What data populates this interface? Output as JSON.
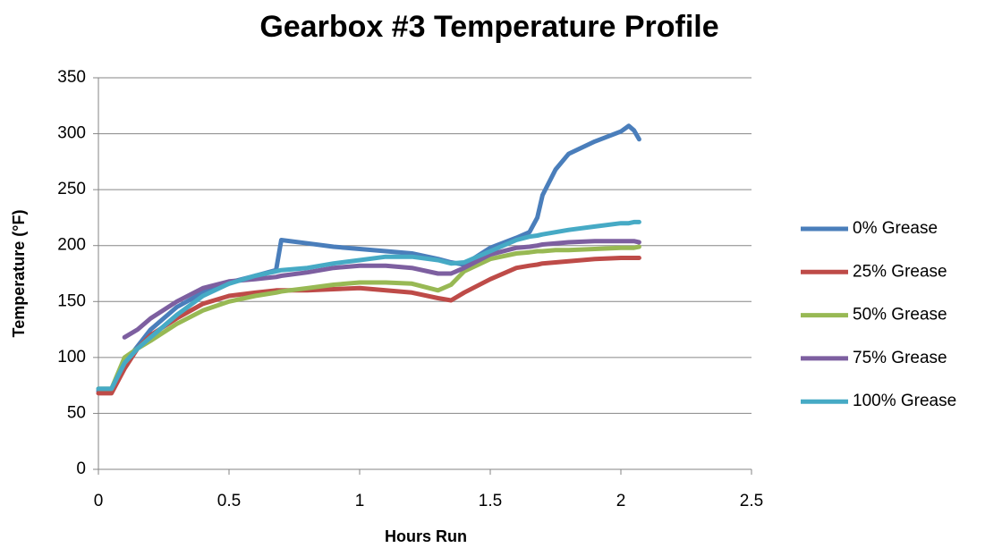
{
  "chart_data": {
    "type": "line",
    "title": "Gearbox #3 Temperature Profile",
    "x_label": "Hours Run",
    "y_label": "Temperature (°F)",
    "x": [
      0,
      0.05,
      0.1,
      0.15,
      0.2,
      0.3,
      0.4,
      0.5,
      0.6,
      0.68,
      0.7,
      0.8,
      0.9,
      1.0,
      1.1,
      1.2,
      1.3,
      1.35,
      1.4,
      1.5,
      1.6,
      1.65,
      1.68,
      1.7,
      1.75,
      1.8,
      1.9,
      2.0,
      2.03,
      2.05,
      2.07
    ],
    "series": [
      {
        "name": "0% Grease",
        "color": "#4a7ebb",
        "values": [
          70,
          72,
          95,
          110,
          125,
          145,
          158,
          167,
          173,
          178,
          205,
          202,
          199,
          197,
          195,
          193,
          188,
          185,
          183,
          198,
          207,
          212,
          225,
          245,
          268,
          282,
          293,
          302,
          307,
          303,
          295
        ]
      },
      {
        "name": "25% Grease",
        "color": "#be4b48",
        "values": [
          68,
          68,
          90,
          108,
          120,
          135,
          148,
          155,
          158,
          160,
          160,
          160,
          161,
          162,
          160,
          158,
          153,
          151,
          158,
          170,
          180,
          182,
          183,
          184,
          185,
          186,
          188,
          189,
          189,
          189,
          189
        ]
      },
      {
        "name": "50% Grease",
        "color": "#98b954",
        "values": [
          72,
          72,
          100,
          108,
          115,
          130,
          142,
          150,
          155,
          158,
          159,
          162,
          165,
          167,
          167,
          166,
          160,
          165,
          177,
          188,
          193,
          194,
          195,
          195,
          196,
          196,
          197,
          198,
          198,
          198,
          199
        ]
      },
      {
        "name": "75% Grease",
        "color": "#7d5fa0",
        "values": [
          null,
          null,
          118,
          125,
          135,
          150,
          162,
          168,
          170,
          172,
          173,
          176,
          180,
          182,
          182,
          180,
          175,
          175,
          180,
          192,
          198,
          199,
          200,
          201,
          202,
          203,
          204,
          204,
          204,
          204,
          203
        ]
      },
      {
        "name": "100% Grease",
        "color": "#46aac5",
        "values": [
          72,
          72,
          95,
          108,
          118,
          138,
          155,
          166,
          173,
          177,
          178,
          180,
          184,
          187,
          190,
          190,
          187,
          184,
          185,
          195,
          205,
          208,
          209,
          210,
          212,
          214,
          217,
          220,
          220,
          221,
          221
        ]
      }
    ],
    "xlim": [
      0,
      2.5
    ],
    "xticks": [
      0,
      0.5,
      1,
      1.5,
      2,
      2.5
    ],
    "ylim": [
      0,
      350
    ],
    "yticks": [
      0,
      50,
      100,
      150,
      200,
      250,
      300,
      350
    ],
    "grid": true,
    "legend": "right"
  }
}
